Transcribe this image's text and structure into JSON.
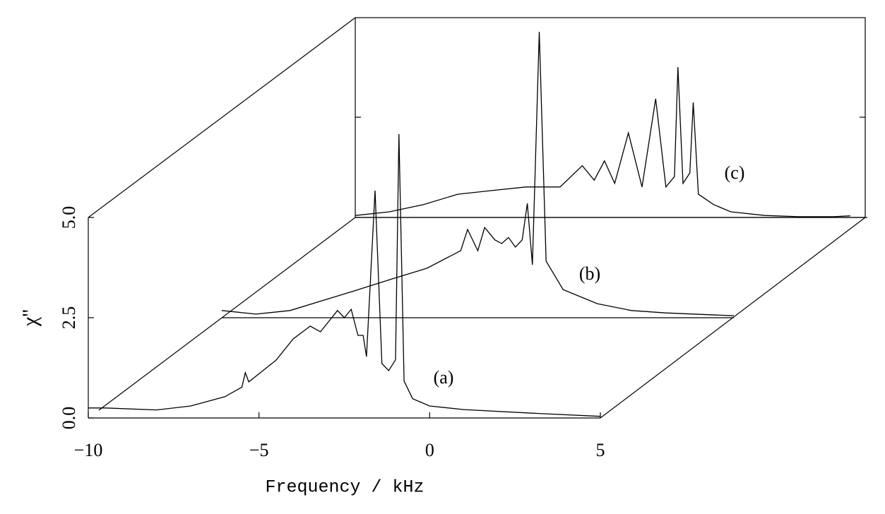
{
  "chart_data": {
    "type": "waterfall",
    "xlabel": "Frequency / kHz",
    "ylabel": "χ''",
    "xlim": [
      -10,
      5
    ],
    "ylim": [
      0,
      5
    ],
    "xticks": [
      {
        "value": -10,
        "label": "−10"
      },
      {
        "value": -5,
        "label": "−5"
      },
      0,
      5
    ],
    "yticks": [
      {
        "value": 0,
        "label": "0.0"
      },
      2.5,
      {
        "value": 5,
        "label": "5.0"
      }
    ],
    "series": [
      {
        "name": "(a)",
        "color": "#000000",
        "x": [
          -10,
          -9.5,
          -8,
          -7,
          -6,
          -5.5,
          -5.4,
          -5.3,
          -4.5,
          -4,
          -3.5,
          -3.2,
          -3,
          -2.7,
          -2.5,
          -2.3,
          -2.1,
          -1.95,
          -1.85,
          -1.6,
          -1.4,
          -1.2,
          -1.0,
          -0.9,
          -0.75,
          -0.5,
          0,
          1,
          3,
          5
        ],
        "values": [
          0.25,
          0.25,
          0.2,
          0.3,
          0.53,
          0.77,
          1.13,
          0.9,
          1.44,
          1.97,
          2.29,
          2.15,
          2.36,
          2.68,
          2.5,
          2.71,
          2.06,
          2.06,
          1.53,
          5.67,
          1.36,
          1.18,
          1.45,
          7.08,
          0.92,
          0.48,
          0.3,
          0.21,
          0.12,
          0.04
        ]
      },
      {
        "name": "(b)",
        "color": "#000000",
        "x": [
          -10,
          -9,
          -8,
          -7,
          -6,
          -5,
          -4,
          -3,
          -2.8,
          -2.5,
          -2.3,
          -2,
          -1.8,
          -1.6,
          -1.4,
          -1.2,
          -1.05,
          -0.9,
          -0.7,
          -0.5,
          0,
          1,
          2,
          3,
          5
        ],
        "values": [
          0.18,
          0.09,
          0.18,
          0.44,
          0.7,
          0.97,
          1.23,
          1.67,
          2.2,
          1.67,
          2.25,
          1.94,
          1.85,
          2.0,
          1.76,
          1.94,
          2.85,
          1.32,
          7.13,
          1.41,
          0.7,
          0.35,
          0.18,
          0.12,
          0.05
        ]
      },
      {
        "name": "(c)",
        "color": "#000000",
        "x": [
          -10,
          -9,
          -8,
          -7,
          -6,
          -5,
          -4,
          -3.35,
          -3,
          -2.7,
          -2.4,
          -2,
          -1.6,
          -1.2,
          -0.9,
          -0.65,
          -0.55,
          -0.4,
          -0.2,
          -0.1,
          0.05,
          0.5,
          1,
          2,
          3,
          4,
          4.5
        ],
        "values": [
          0.05,
          0.14,
          0.32,
          0.58,
          0.67,
          0.76,
          0.76,
          1.29,
          0.93,
          1.41,
          0.85,
          2.11,
          0.76,
          2.96,
          0.76,
          1.02,
          3.75,
          0.85,
          1.11,
          2.87,
          0.58,
          0.32,
          0.14,
          0.05,
          0.02,
          0.02,
          0.04
        ]
      }
    ]
  }
}
